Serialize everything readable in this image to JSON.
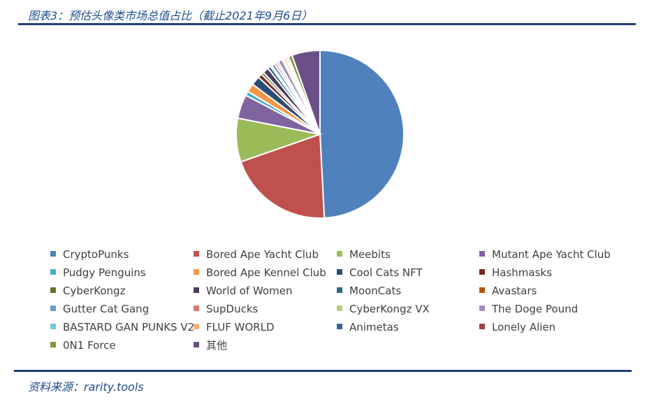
{
  "header": {
    "title": "图表3：预估头像类市场总值占比（截止2021年9月6日）"
  },
  "footer": {
    "source": "资料来源：rarity.tools"
  },
  "chart_data": {
    "type": "pie",
    "title": "",
    "legend_placement": "bottom",
    "slices": [
      {
        "label": "CryptoPunks",
        "value": 48.0,
        "color": "#4f81bd"
      },
      {
        "label": "Bored Ape Yacht Club",
        "value": 20.0,
        "color": "#c0504d"
      },
      {
        "label": "Meebits",
        "value": 8.2,
        "color": "#9bbb59"
      },
      {
        "label": "Mutant Ape Yacht Club",
        "value": 4.5,
        "color": "#8064a2"
      },
      {
        "label": "Pudgy Penguins",
        "value": 0.8,
        "color": "#4bacc6"
      },
      {
        "label": "Bored Ape Kennel Club",
        "value": 1.6,
        "color": "#f79646"
      },
      {
        "label": "Cool Cats NFT",
        "value": 1.7,
        "color": "#2c4d75"
      },
      {
        "label": "Hashmasks",
        "value": 0.8,
        "color": "#772c2a"
      },
      {
        "label": "CyberKongz",
        "value": 0.5,
        "color": "#5f7530"
      },
      {
        "label": "World of Women",
        "value": 1.1,
        "color": "#4d3b62"
      },
      {
        "label": "MoonCats",
        "value": 0.6,
        "color": "#276a7c"
      },
      {
        "label": "Avastars",
        "value": 0.3,
        "color": "#b65708"
      },
      {
        "label": "Gutter Cat Gang",
        "value": 0.6,
        "color": "#729aca"
      },
      {
        "label": "SupDucks",
        "value": 0.4,
        "color": "#d9797a"
      },
      {
        "label": "CyberKongz VX",
        "value": 0.4,
        "color": "#b4cc84"
      },
      {
        "label": "The Doge Pound",
        "value": 0.8,
        "color": "#a28fbc"
      },
      {
        "label": "BASTARD GAN PUNKS V2",
        "value": 0.3,
        "color": "#6fc7db"
      },
      {
        "label": "FLUF WORLD",
        "value": 0.4,
        "color": "#fab075"
      },
      {
        "label": "Animetas",
        "value": 0.3,
        "color": "#3a6597"
      },
      {
        "label": "Lonely Alien",
        "value": 0.3,
        "color": "#a0413f"
      },
      {
        "label": "0N1 Force",
        "value": 0.7,
        "color": "#7f9c41"
      },
      {
        "label": "其他",
        "value": 5.3,
        "color": "#6a5087"
      }
    ]
  }
}
